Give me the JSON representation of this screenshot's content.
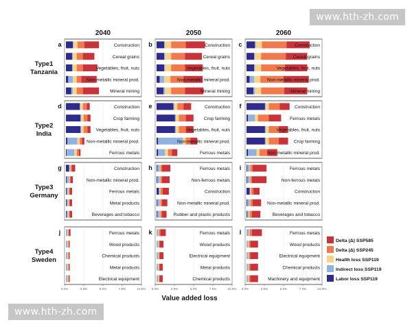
{
  "watermark": {
    "text": "www.hth-zh.com"
  },
  "chart_data": {
    "type": "bar",
    "stacked": true,
    "orientation": "horizontal",
    "xlabel": "Value added loss",
    "xlim": [
      0,
      10
    ],
    "x_ticks": [
      0,
      2.5,
      5,
      7.5,
      10
    ],
    "x_tick_labels": [
      "0.0%",
      "2.5%",
      "5.0%",
      "7.5%",
      "10.0%"
    ],
    "columns": [
      "2040",
      "2050",
      "2060"
    ],
    "row_groups": [
      {
        "type": "Type1",
        "country": "Tanzania"
      },
      {
        "type": "Type2",
        "country": "India"
      },
      {
        "type": "Type3",
        "country": "Germany"
      },
      {
        "type": "Type4",
        "country": "Sweden"
      }
    ],
    "legend": [
      {
        "key": "delta585",
        "label": "Delta (Δ) SSP585",
        "color": "#c9343b"
      },
      {
        "key": "delta245",
        "label": "Delta (Δ) SSP245",
        "color": "#f07a4e"
      },
      {
        "key": "health",
        "label": "Health loss SSP119",
        "color": "#f7d48a"
      },
      {
        "key": "indirect",
        "label": "Indirect loss SSP119",
        "color": "#8fb2e0"
      },
      {
        "key": "labor",
        "label": "Labor loss SSP119",
        "color": "#2e2b8c"
      }
    ],
    "legend_position": "right",
    "panels": [
      {
        "letter": "a",
        "bars": [
          {
            "sector": "Construction",
            "labor": 0.9,
            "indirect": 0.1,
            "health": 0.5,
            "delta245": 0.9,
            "delta585": 1.9
          },
          {
            "sector": "Cereal grains",
            "labor": 0.8,
            "indirect": 0.1,
            "health": 0.5,
            "delta245": 0.8,
            "delta585": 1.5
          },
          {
            "sector": "Vegetables, fruit, nuts",
            "labor": 0.8,
            "indirect": 0.1,
            "health": 0.5,
            "delta245": 0.8,
            "delta585": 1.9
          },
          {
            "sector": "Non-metallic mineral prod.",
            "labor": 0.3,
            "indirect": 0.6,
            "health": 0.5,
            "delta245": 0.6,
            "delta585": 2.0
          },
          {
            "sector": "Mineral mining",
            "labor": 0.7,
            "indirect": 0.2,
            "health": 0.5,
            "delta245": 0.8,
            "delta585": 2.1
          }
        ]
      },
      {
        "letter": "b",
        "bars": [
          {
            "sector": "Construction",
            "labor": 1.0,
            "indirect": 0.1,
            "health": 0.8,
            "delta245": 1.9,
            "delta585": 2.5
          },
          {
            "sector": "Cereal grains",
            "labor": 1.0,
            "indirect": 0.1,
            "health": 0.8,
            "delta245": 1.8,
            "delta585": 2.2
          },
          {
            "sector": "Vegetables, fruit, nuts",
            "labor": 1.0,
            "indirect": 0.1,
            "health": 0.8,
            "delta245": 1.8,
            "delta585": 2.3
          },
          {
            "sector": "Non-metallic mineral prod.",
            "labor": 0.4,
            "indirect": 0.6,
            "health": 0.8,
            "delta245": 1.7,
            "delta585": 2.5
          },
          {
            "sector": "Mineral mining",
            "labor": 0.9,
            "indirect": 0.2,
            "health": 0.8,
            "delta245": 1.8,
            "delta585": 2.4
          }
        ]
      },
      {
        "letter": "c",
        "bars": [
          {
            "sector": "Construction",
            "labor": 1.1,
            "indirect": 0.1,
            "health": 0.8,
            "delta245": 3.2,
            "delta585": 3.0
          },
          {
            "sector": "Cereal grains",
            "labor": 1.0,
            "indirect": 0.1,
            "health": 0.8,
            "delta245": 3.2,
            "delta585": 2.8
          },
          {
            "sector": "Vegetables, fruit, nuts",
            "labor": 1.0,
            "indirect": 0.1,
            "health": 0.8,
            "delta245": 3.1,
            "delta585": 2.9
          },
          {
            "sector": "Non-metallic mineral prod.",
            "labor": 0.4,
            "indirect": 0.6,
            "health": 0.8,
            "delta245": 3.0,
            "delta585": 3.3
          },
          {
            "sector": "Mineral mining",
            "labor": 0.9,
            "indirect": 0.2,
            "health": 0.8,
            "delta245": 3.0,
            "delta585": 3.0
          }
        ]
      },
      {
        "letter": "d",
        "bars": [
          {
            "sector": "Construction",
            "labor": 1.8,
            "indirect": 0.1,
            "health": 0.3,
            "delta245": 0.5,
            "delta585": 0.4
          },
          {
            "sector": "Crop farming",
            "labor": 1.9,
            "indirect": 0.1,
            "health": 0.3,
            "delta245": 0.5,
            "delta585": 0.4
          },
          {
            "sector": "Vegetables, fruit, nuts",
            "labor": 1.9,
            "indirect": 0.1,
            "health": 0.3,
            "delta245": 0.5,
            "delta585": 0.4
          },
          {
            "sector": "Non-metallic mineral prod.",
            "labor": 0.2,
            "indirect": 1.3,
            "health": 0.3,
            "delta245": 0.3,
            "delta585": 0.3
          },
          {
            "sector": "Ferrous metals",
            "labor": 0.1,
            "indirect": 1.0,
            "health": 0.3,
            "delta245": 0.3,
            "delta585": 0.2
          }
        ]
      },
      {
        "letter": "e",
        "bars": [
          {
            "sector": "Construction",
            "labor": 2.2,
            "indirect": 0.1,
            "health": 0.4,
            "delta245": 0.8,
            "delta585": 1.0
          },
          {
            "sector": "Crop farming",
            "labor": 2.4,
            "indirect": 0.1,
            "health": 0.4,
            "delta245": 0.9,
            "delta585": 1.0
          },
          {
            "sector": "Vegetables, fruit, nuts",
            "labor": 2.4,
            "indirect": 0.1,
            "health": 0.4,
            "delta245": 0.9,
            "delta585": 1.0
          },
          {
            "sector": "Non-metallic mineral prod.",
            "labor": 0.2,
            "indirect": 3.2,
            "health": 0.4,
            "delta245": 0.6,
            "delta585": 0.9
          },
          {
            "sector": "Ferrous metals",
            "labor": 0.2,
            "indirect": 0.9,
            "health": 0.4,
            "delta245": 0.5,
            "delta585": 0.7
          }
        ]
      },
      {
        "letter": "f",
        "bars": [
          {
            "sector": "Construction",
            "labor": 2.4,
            "indirect": 0.1,
            "health": 0.4,
            "delta245": 1.4,
            "delta585": 1.3
          },
          {
            "sector": "Ferrous metals",
            "labor": 0.2,
            "indirect": 0.9,
            "health": 0.4,
            "delta245": 1.4,
            "delta585": 1.6
          },
          {
            "sector": "Vegetables, fruit, nuts",
            "labor": 2.4,
            "indirect": 0.1,
            "health": 0.4,
            "delta245": 1.3,
            "delta585": 1.2
          },
          {
            "sector": "Crop farming",
            "labor": 2.4,
            "indirect": 0.1,
            "health": 0.4,
            "delta245": 1.3,
            "delta585": 1.2
          },
          {
            "sector": "Non-metallic mineral prod.",
            "labor": 0.2,
            "indirect": 1.1,
            "health": 0.4,
            "delta245": 1.0,
            "delta585": 1.3
          }
        ]
      },
      {
        "letter": "g",
        "bars": [
          {
            "sector": "Construction",
            "labor": 0.4,
            "indirect": 0.1,
            "health": 0.1,
            "delta245": 0.2,
            "delta585": 0.4
          },
          {
            "sector": "Non-metallic mineral prod.",
            "labor": 0.1,
            "indirect": 0.3,
            "health": 0.1,
            "delta245": 0.1,
            "delta585": 0.3
          },
          {
            "sector": "Ferrous metals",
            "labor": 0.1,
            "indirect": 0.2,
            "health": 0.1,
            "delta245": 0.1,
            "delta585": 0.3
          },
          {
            "sector": "Metal products",
            "labor": 0.1,
            "indirect": 0.2,
            "health": 0.1,
            "delta245": 0.1,
            "delta585": 0.3
          },
          {
            "sector": "Beverages and tobacco",
            "labor": 0.1,
            "indirect": 0.2,
            "health": 0.1,
            "delta245": 0.1,
            "delta585": 0.3
          }
        ]
      },
      {
        "letter": "h",
        "bars": [
          {
            "sector": "Ferrous metals",
            "labor": 0.1,
            "indirect": 0.3,
            "health": 0.1,
            "delta245": 0.2,
            "delta585": 1.1
          },
          {
            "sector": "Non-ferrous metals",
            "labor": 0.1,
            "indirect": 0.3,
            "health": 0.1,
            "delta245": 0.2,
            "delta585": 1.0
          },
          {
            "sector": "Construction",
            "labor": 0.3,
            "indirect": 0.1,
            "health": 0.1,
            "delta245": 0.3,
            "delta585": 0.8
          },
          {
            "sector": "Non-metallic mineral prod.",
            "labor": 0.1,
            "indirect": 0.3,
            "health": 0.1,
            "delta245": 0.2,
            "delta585": 0.7
          },
          {
            "sector": "Rubber and plastic products",
            "labor": 0.1,
            "indirect": 0.3,
            "health": 0.1,
            "delta245": 0.2,
            "delta585": 0.6
          }
        ]
      },
      {
        "letter": "i",
        "bars": [
          {
            "sector": "Ferrous metals",
            "labor": 0.1,
            "indirect": 0.3,
            "health": 0.1,
            "delta245": 0.3,
            "delta585": 1.8
          },
          {
            "sector": "Non-ferrous metals",
            "labor": 0.1,
            "indirect": 0.3,
            "health": 0.1,
            "delta245": 0.2,
            "delta585": 1.9
          },
          {
            "sector": "Construction",
            "labor": 0.4,
            "indirect": 0.1,
            "health": 0.1,
            "delta245": 0.3,
            "delta585": 0.8
          },
          {
            "sector": "Non-metallic mineral prod.",
            "labor": 0.1,
            "indirect": 0.3,
            "health": 0.1,
            "delta245": 0.3,
            "delta585": 1.1
          },
          {
            "sector": "Beverages and tobacco",
            "labor": 0.1,
            "indirect": 0.2,
            "health": 0.1,
            "delta245": 0.3,
            "delta585": 1.1
          }
        ]
      },
      {
        "letter": "j",
        "bars": [
          {
            "sector": "Ferrous metals",
            "labor": 0.0,
            "indirect": 0.2,
            "health": 0.1,
            "delta245": 0.1,
            "delta585": 0.2
          },
          {
            "sector": "Wood products",
            "labor": 0.0,
            "indirect": 0.2,
            "health": 0.1,
            "delta245": 0.1,
            "delta585": 0.1
          },
          {
            "sector": "Chemical products",
            "labor": 0.0,
            "indirect": 0.2,
            "health": 0.1,
            "delta245": 0.1,
            "delta585": 0.1
          },
          {
            "sector": "Metal products",
            "labor": 0.0,
            "indirect": 0.2,
            "health": 0.1,
            "delta245": 0.1,
            "delta585": 0.1
          },
          {
            "sector": "Electrical equipment",
            "labor": 0.0,
            "indirect": 0.2,
            "health": 0.1,
            "delta245": 0.1,
            "delta585": 0.1
          }
        ]
      },
      {
        "letter": "k",
        "bars": [
          {
            "sector": "Ferrous metals",
            "labor": 0.0,
            "indirect": 0.2,
            "health": 0.1,
            "delta245": 0.2,
            "delta585": 0.7
          },
          {
            "sector": "Wood products",
            "labor": 0.0,
            "indirect": 0.2,
            "health": 0.1,
            "delta245": 0.1,
            "delta585": 0.5
          },
          {
            "sector": "Electrical equipment",
            "labor": 0.0,
            "indirect": 0.2,
            "health": 0.1,
            "delta245": 0.1,
            "delta585": 0.5
          },
          {
            "sector": "Metal products",
            "labor": 0.0,
            "indirect": 0.2,
            "health": 0.1,
            "delta245": 0.1,
            "delta585": 0.4
          },
          {
            "sector": "Chemical products",
            "labor": 0.0,
            "indirect": 0.2,
            "health": 0.1,
            "delta245": 0.1,
            "delta585": 0.4
          }
        ]
      },
      {
        "letter": "l",
        "bars": [
          {
            "sector": "Ferrous metals",
            "labor": 0.0,
            "indirect": 0.3,
            "health": 0.1,
            "delta245": 0.3,
            "delta585": 1.3
          },
          {
            "sector": "Wood products",
            "labor": 0.0,
            "indirect": 0.2,
            "health": 0.1,
            "delta245": 0.2,
            "delta585": 1.0
          },
          {
            "sector": "Electrical equipment",
            "labor": 0.0,
            "indirect": 0.2,
            "health": 0.1,
            "delta245": 0.2,
            "delta585": 1.0
          },
          {
            "sector": "Chemical products",
            "labor": 0.0,
            "indirect": 0.2,
            "health": 0.1,
            "delta245": 0.2,
            "delta585": 1.0
          },
          {
            "sector": "Machinery and equipment",
            "labor": 0.0,
            "indirect": 0.2,
            "health": 0.1,
            "delta245": 0.2,
            "delta585": 1.0
          }
        ]
      }
    ]
  }
}
